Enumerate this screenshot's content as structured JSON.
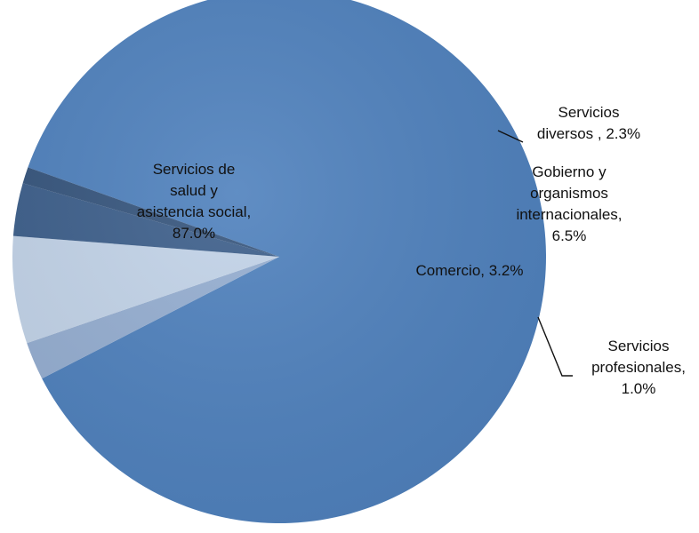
{
  "chart_data": {
    "type": "pie",
    "title": "",
    "slices": [
      {
        "name": "Servicios de salud y asistencia social",
        "value": 87.0,
        "color": "#4f81bd",
        "label_lines": [
          "Servicios de",
          "salud y",
          "asistencia social,",
          "87.0%"
        ]
      },
      {
        "name": "Servicios diversos",
        "value": 2.3,
        "color": "#95aed1",
        "label_lines": [
          "Servicios",
          "diversos , 2.3%"
        ]
      },
      {
        "name": "Gobierno y organismos internacionales",
        "value": 6.5,
        "color": "#c2d3e8",
        "label_lines": [
          "Gobierno y",
          "organismos",
          "internacionales,",
          "6.5%"
        ]
      },
      {
        "name": "Comercio",
        "value": 3.2,
        "color": "#3d5f8b",
        "label_lines": [
          "Comercio, 3.2%"
        ]
      },
      {
        "name": "Servicios profesionales",
        "value": 1.0,
        "color": "#36557d",
        "label_lines": [
          "Servicios",
          "profesionales,",
          "1.0%"
        ]
      }
    ]
  }
}
